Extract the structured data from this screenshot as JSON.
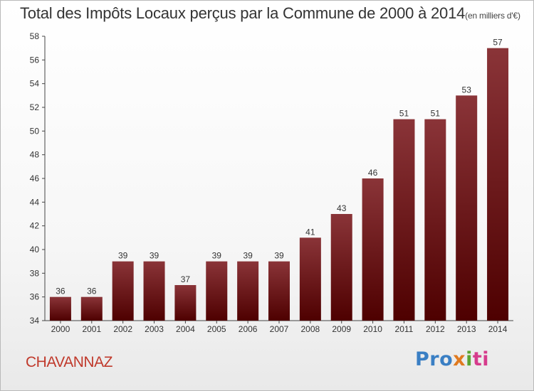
{
  "header": {
    "title": "Total des Impôts Locaux perçus par la Commune de 2000 à 2014",
    "unit_note": "(en milliers d'€)"
  },
  "footer": {
    "commune": "CHAVANNAZ",
    "logo_text": "Proxiti",
    "logo_parts": [
      "Pro",
      "x",
      "i",
      "ti"
    ]
  },
  "colors": {
    "bar_top": "#8a3438",
    "bar_bottom": "#4e0000",
    "commune_text": "#c0392b"
  },
  "chart_data": {
    "type": "bar",
    "title": "Total des Impôts Locaux perçus par la Commune de 2000 à 2014",
    "categories": [
      "2000",
      "2001",
      "2002",
      "2003",
      "2004",
      "2005",
      "2006",
      "2007",
      "2008",
      "2009",
      "2010",
      "2011",
      "2012",
      "2013",
      "2014"
    ],
    "values": [
      36,
      36,
      39,
      39,
      37,
      39,
      39,
      39,
      41,
      43,
      46,
      51,
      51,
      53,
      57
    ],
    "ylim": [
      34,
      58
    ],
    "yticks": [
      34,
      36,
      38,
      40,
      42,
      44,
      46,
      48,
      50,
      52,
      54,
      56,
      58
    ],
    "grid": false,
    "data_labels": true,
    "xlabel": "",
    "ylabel": ""
  }
}
